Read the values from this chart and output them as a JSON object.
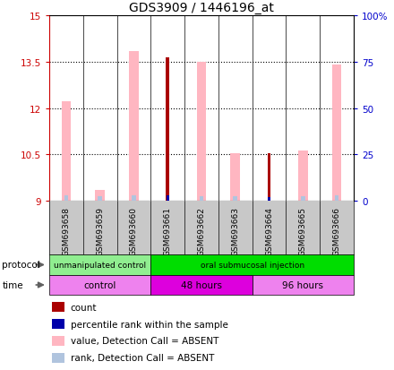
{
  "title": "GDS3909 / 1446196_at",
  "samples": [
    "GSM693658",
    "GSM693659",
    "GSM693660",
    "GSM693661",
    "GSM693662",
    "GSM693663",
    "GSM693664",
    "GSM693665",
    "GSM693666"
  ],
  "ylim": [
    9,
    15
  ],
  "y_ticks": [
    9,
    10.5,
    12,
    13.5,
    15
  ],
  "y_tick_labels": [
    "9",
    "10.5",
    "12",
    "13.5",
    "15"
  ],
  "y2_ticks": [
    0,
    25,
    50,
    75,
    100
  ],
  "y2_tick_labels": [
    "0",
    "25",
    "50",
    "75",
    "100%"
  ],
  "count_values": [
    0,
    0,
    0,
    13.65,
    0,
    0,
    10.55,
    0,
    0
  ],
  "percentile_tops": [
    0,
    0,
    0,
    9.18,
    0,
    0,
    9.12,
    0,
    0
  ],
  "pink_bar_top": [
    12.22,
    9.35,
    13.85,
    0,
    13.5,
    10.55,
    0,
    10.62,
    13.4
  ],
  "blue_bar_top": [
    9.18,
    9.15,
    9.18,
    0,
    9.15,
    9.15,
    0,
    9.15,
    9.18
  ],
  "base": 9,
  "protocol_groups": [
    {
      "label": "unmanipulated control",
      "start": 0,
      "end": 3,
      "color": "#90EE90"
    },
    {
      "label": "oral submucosal injection",
      "start": 3,
      "end": 9,
      "color": "#00DD00"
    }
  ],
  "time_groups": [
    {
      "label": "control",
      "start": 0,
      "end": 3,
      "color": "#EE82EE"
    },
    {
      "label": "48 hours",
      "start": 3,
      "end": 6,
      "color": "#DD00DD"
    },
    {
      "label": "96 hours",
      "start": 6,
      "end": 9,
      "color": "#EE82EE"
    }
  ],
  "count_color": "#AA0000",
  "percentile_color": "#0000AA",
  "pink_bar_color": "#FFB6C1",
  "blue_bar_color": "#B0C4DE",
  "gray_cell_color": "#C8C8C8",
  "legend_items": [
    {
      "color": "#AA0000",
      "label": "count"
    },
    {
      "color": "#0000AA",
      "label": "percentile rank within the sample"
    },
    {
      "color": "#FFB6C1",
      "label": "value, Detection Call = ABSENT"
    },
    {
      "color": "#B0C4DE",
      "label": "rank, Detection Call = ABSENT"
    }
  ],
  "left_axis_color": "#CC0000",
  "right_axis_color": "#0000CC",
  "dotted_ticks": [
    10.5,
    12,
    13.5
  ]
}
